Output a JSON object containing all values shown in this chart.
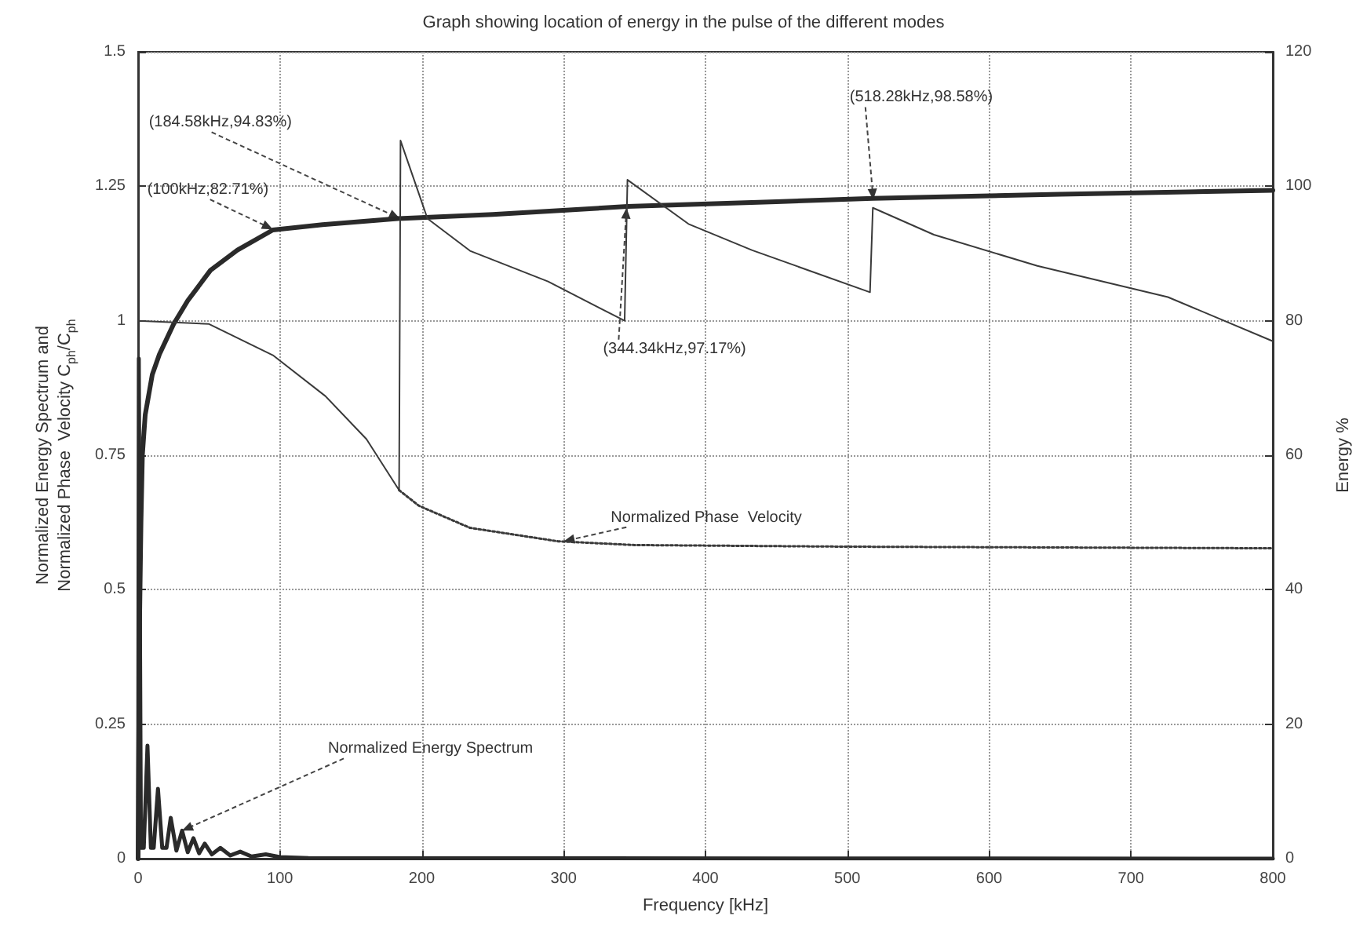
{
  "chart_data": {
    "type": "line",
    "title": "Graph showing location of energy in the pulse of the different modes",
    "xlabel": "Frequency [kHz]",
    "ylabel": "Normalized Energy Spectrum and\nNormalized Phase  Velocity C$_{ph}$/C$_{ph}$",
    "y2label": "Energy %",
    "xlim": [
      0,
      800
    ],
    "xticks": [
      0,
      100,
      200,
      300,
      400,
      500,
      600,
      700,
      800
    ],
    "ylim": [
      0,
      1.5
    ],
    "yticks": [
      0,
      0.25,
      0.5,
      0.75,
      1,
      1.25,
      1.5
    ],
    "y2lim": [
      0,
      120
    ],
    "y2ticks": [
      0,
      20,
      40,
      60,
      80,
      100,
      120
    ],
    "grid": true,
    "series": [
      {
        "color": "#2a2a2a",
        "axis": "y2",
        "x": [
          0,
          1,
          2,
          3,
          5,
          10,
          15,
          25,
          35,
          51,
          70,
          95,
          130,
          183,
          250,
          345,
          450,
          518,
          650,
          800
        ],
        "values": [
          0,
          35,
          50,
          60,
          66,
          72,
          75,
          79.5,
          83,
          87.5,
          90.5,
          93.5,
          94.3,
          95.2,
          95.8,
          97,
          97.7,
          98.2,
          98.8,
          99.4
        ]
      },
      {
        "color": "#2a2a2a",
        "x": [
          0,
          0.5,
          2,
          4,
          6.6,
          9,
          11,
          14,
          17,
          20,
          23,
          27,
          31,
          35,
          39,
          43,
          47,
          52,
          58,
          65,
          72,
          80,
          90,
          100,
          120,
          800
        ],
        "values": [
          0,
          0.93,
          0.02,
          0.02,
          0.21,
          0.02,
          0.02,
          0.13,
          0.02,
          0.02,
          0.076,
          0.015,
          0.052,
          0.012,
          0.038,
          0.01,
          0.028,
          0.008,
          0.02,
          0.006,
          0.013,
          0.004,
          0.008,
          0.003,
          0.001,
          0
        ]
      },
      {
        "color": "#3a3a3a",
        "x": [
          0,
          50,
          95,
          132,
          161,
          184,
          185,
          204,
          234,
          289,
          343,
          345,
          388,
          433,
          516,
          518,
          561,
          634,
          726,
          800
        ],
        "values": [
          1,
          0.994,
          0.936,
          0.86,
          0.78,
          0.685,
          1.335,
          1.19,
          1.13,
          1.073,
          1.0,
          1.262,
          1.18,
          1.131,
          1.053,
          1.21,
          1.16,
          1.102,
          1.044,
          0.962
        ]
      },
      {
        "color": "#3a3a3a",
        "line_style": "dotted",
        "x": [
          184,
          198,
          234,
          296,
          350,
          500,
          800
        ],
        "values": [
          0.685,
          0.656,
          0.615,
          0.59,
          0.583,
          0.58,
          0.577
        ]
      }
    ],
    "annotations": [
      {
        "text": "(100kHz,82.71%)",
        "x": 95,
        "y": 1.17
      },
      {
        "text": "(184.58kHz,94.83%)",
        "x": 184.58,
        "y": 1.19
      },
      {
        "text": "(344.34kHz,97.17%)",
        "x": 344.34,
        "y": 1.21
      },
      {
        "text": "(518.28kHz,98.58%)",
        "x": 518.28,
        "y": 1.225
      },
      {
        "text": "Normalized Phase  Velocity",
        "x": 300,
        "y": 0.59
      },
      {
        "text": "Normalized Energy Spectrum",
        "x": 31,
        "y": 0.052
      }
    ]
  }
}
